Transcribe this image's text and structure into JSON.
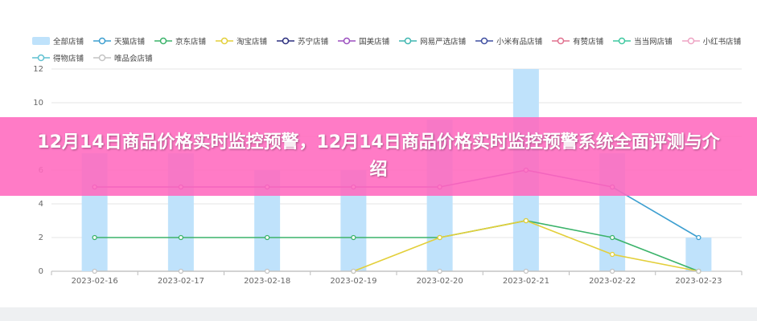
{
  "chart_data": {
    "type": "combo",
    "banner_title": "12月14日商品价格实时监控预警，12月14日商品价格实时监控预警系统全面评测与介绍",
    "categories": [
      "2023-02-16",
      "2023-02-17",
      "2023-02-18",
      "2023-02-19",
      "2023-02-20",
      "2023-02-21",
      "2023-02-22",
      "2023-02-23"
    ],
    "ylim": [
      0,
      12
    ],
    "yticks": [
      0,
      2,
      4,
      6,
      8,
      10,
      12
    ],
    "grid": true,
    "series": [
      {
        "name": "全部店铺",
        "type": "bar",
        "color": "#bfe2fb",
        "values": [
          7,
          7,
          6,
          6,
          9,
          12,
          7,
          2
        ]
      },
      {
        "name": "天猫店铺",
        "type": "line",
        "color": "#3d9fd0",
        "values": [
          null,
          null,
          null,
          null,
          null,
          null,
          5,
          2
        ]
      },
      {
        "name": "京东店铺",
        "type": "line",
        "color": "#3bb36a",
        "values": [
          2,
          2,
          2,
          2,
          2,
          3,
          2,
          0
        ]
      },
      {
        "name": "淘宝店铺",
        "type": "line",
        "color": "#e3cf3a",
        "values": [
          null,
          null,
          null,
          0,
          2,
          3,
          1,
          0
        ]
      },
      {
        "name": "苏宁店铺",
        "type": "line",
        "color": "#2b2f7e",
        "values": [
          null,
          null,
          null,
          null,
          null,
          null,
          null,
          null
        ]
      },
      {
        "name": "国美店铺",
        "type": "line",
        "color": "#9b4fbf",
        "values": [
          5,
          5,
          5,
          5,
          5,
          6,
          5,
          null
        ]
      },
      {
        "name": "网易严选店铺",
        "type": "line",
        "color": "#3fb6b0",
        "values": [
          null,
          null,
          null,
          null,
          null,
          null,
          null,
          null
        ]
      },
      {
        "name": "小米有品店铺",
        "type": "line",
        "color": "#3e4ea0",
        "values": [
          null,
          null,
          null,
          null,
          null,
          null,
          null,
          null
        ]
      },
      {
        "name": "有赞店铺",
        "type": "line",
        "color": "#e0708e",
        "values": [
          null,
          null,
          null,
          null,
          null,
          null,
          null,
          null
        ]
      },
      {
        "name": "当当网店铺",
        "type": "line",
        "color": "#3fc8a0",
        "values": [
          null,
          null,
          null,
          null,
          null,
          null,
          null,
          null
        ]
      },
      {
        "name": "小红书店铺",
        "type": "line",
        "color": "#eea3c3",
        "values": [
          null,
          null,
          null,
          null,
          null,
          null,
          null,
          null
        ]
      },
      {
        "name": "得物店铺",
        "type": "line",
        "color": "#5fc1d1",
        "values": [
          null,
          null,
          null,
          null,
          null,
          null,
          null,
          null
        ]
      },
      {
        "name": "唯品会店铺",
        "type": "line",
        "color": "#c4c4c4",
        "values": [
          0,
          0,
          0,
          0,
          0,
          0,
          0,
          0
        ]
      }
    ]
  }
}
